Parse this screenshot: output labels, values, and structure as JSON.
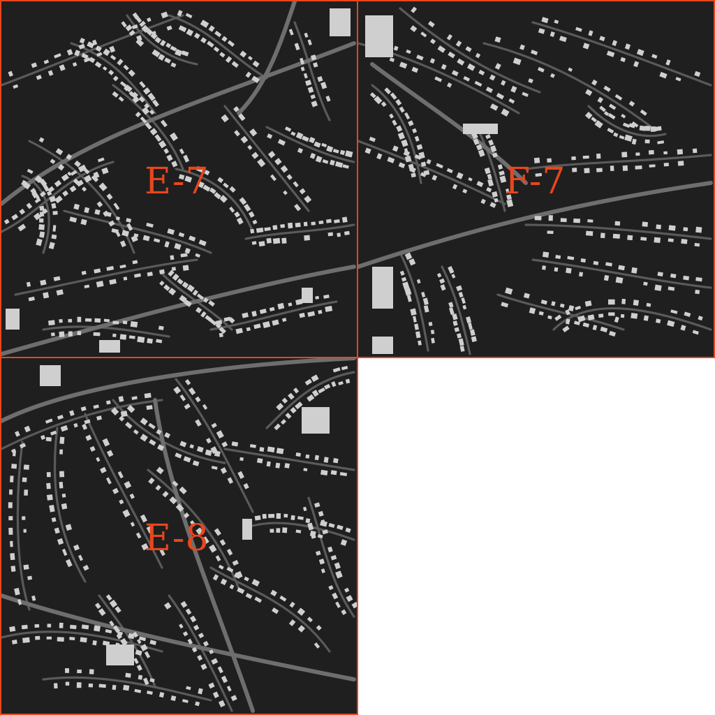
{
  "tiles": [
    {
      "id": "E-7",
      "label": "E-7"
    },
    {
      "id": "F-7",
      "label": "F-7"
    },
    {
      "id": "E-8",
      "label": "E-8"
    }
  ],
  "colors": {
    "background": "#1f1f1f",
    "roads": "#5a5a5a",
    "major_roads": "#6e6e6e",
    "buildings": "#cfcfcf",
    "grid_border": "#e8461e",
    "label": "#e8461e",
    "water": "#6e8aa8"
  }
}
